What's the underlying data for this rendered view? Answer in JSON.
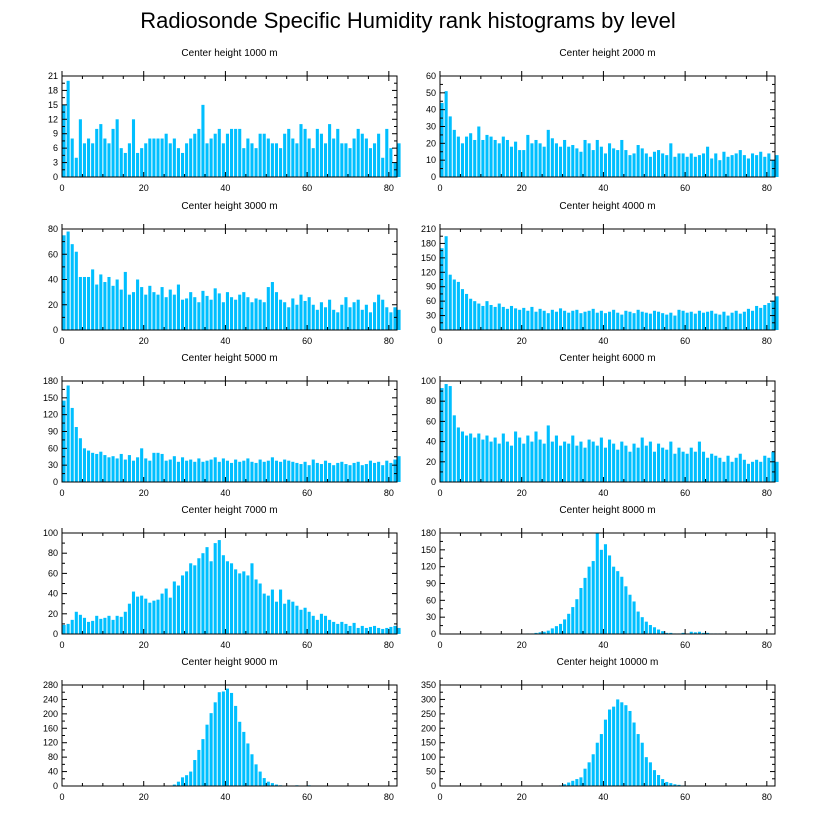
{
  "title": "Radiosonde Specific Humidity rank histograms by level",
  "colors": {
    "bar": "#00bfff",
    "axis": "#000000"
  },
  "chart_data": [
    {
      "type": "bar",
      "title": "Center height 1000 m",
      "xlim": [
        0,
        82
      ],
      "ylim": [
        0,
        21
      ],
      "xticks": [
        0,
        20,
        40,
        60,
        80
      ],
      "yticks": [
        0,
        3,
        6,
        9,
        12,
        15,
        18,
        21
      ],
      "values": [
        15,
        20,
        8,
        4,
        12,
        7,
        8,
        7,
        10,
        11,
        8,
        7,
        10,
        12,
        6,
        5,
        7,
        12,
        5,
        6,
        7,
        8,
        8,
        8,
        8,
        9,
        7,
        8,
        6,
        5,
        7,
        8,
        9,
        10,
        15,
        7,
        8,
        9,
        10,
        7,
        9,
        10,
        10,
        10,
        6,
        8,
        7,
        6,
        9,
        9,
        8,
        7,
        7,
        6,
        9,
        10,
        8,
        7,
        11,
        10,
        8,
        6,
        10,
        9,
        7,
        11,
        8,
        10,
        7,
        7,
        6,
        8,
        10,
        9,
        8,
        6,
        7,
        9,
        4,
        10,
        6,
        3,
        7
      ]
    },
    {
      "type": "bar",
      "title": "Center height 2000 m",
      "xlim": [
        0,
        82
      ],
      "ylim": [
        0,
        60
      ],
      "xticks": [
        0,
        20,
        40,
        60,
        80
      ],
      "yticks": [
        0,
        10,
        20,
        30,
        40,
        50,
        60
      ],
      "values": [
        44,
        51,
        36,
        28,
        24,
        20,
        24,
        26,
        22,
        30,
        22,
        25,
        24,
        22,
        20,
        24,
        22,
        18,
        21,
        16,
        16,
        25,
        20,
        22,
        20,
        18,
        28,
        23,
        20,
        18,
        22,
        18,
        19,
        17,
        15,
        22,
        20,
        16,
        22,
        18,
        14,
        20,
        17,
        16,
        22,
        16,
        13,
        14,
        19,
        17,
        14,
        12,
        15,
        16,
        14,
        13,
        20,
        12,
        14,
        14,
        12,
        14,
        12,
        13,
        14,
        18,
        11,
        14,
        10,
        15,
        12,
        13,
        14,
        16,
        13,
        11,
        14,
        13,
        15,
        12,
        14,
        10,
        13
      ]
    },
    {
      "type": "bar",
      "title": "Center height 3000 m",
      "xlim": [
        0,
        82
      ],
      "ylim": [
        0,
        80
      ],
      "xticks": [
        0,
        20,
        40,
        60,
        80
      ],
      "yticks": [
        0,
        20,
        40,
        60,
        80
      ],
      "values": [
        75,
        78,
        68,
        62,
        42,
        42,
        42,
        48,
        36,
        44,
        38,
        42,
        35,
        40,
        32,
        46,
        28,
        30,
        40,
        34,
        28,
        35,
        30,
        28,
        34,
        26,
        32,
        28,
        36,
        24,
        25,
        30,
        26,
        22,
        31,
        27,
        24,
        33,
        29,
        22,
        30,
        26,
        24,
        28,
        30,
        26,
        22,
        25,
        24,
        22,
        34,
        38,
        30,
        24,
        22,
        18,
        25,
        20,
        28,
        23,
        26,
        20,
        16,
        22,
        18,
        24,
        16,
        14,
        20,
        26,
        18,
        22,
        24,
        16,
        20,
        14,
        22,
        28,
        24,
        18,
        14,
        18,
        16
      ]
    },
    {
      "type": "bar",
      "title": "Center height 4000 m",
      "xlim": [
        0,
        82
      ],
      "ylim": [
        0,
        210
      ],
      "xticks": [
        0,
        20,
        40,
        60,
        80
      ],
      "yticks": [
        0,
        30,
        60,
        90,
        120,
        150,
        180,
        210
      ],
      "values": [
        170,
        195,
        115,
        105,
        100,
        85,
        75,
        65,
        60,
        55,
        50,
        60,
        52,
        48,
        55,
        48,
        44,
        50,
        45,
        42,
        46,
        40,
        48,
        38,
        44,
        40,
        35,
        42,
        38,
        45,
        40,
        36,
        40,
        42,
        35,
        38,
        40,
        44,
        36,
        40,
        35,
        38,
        42,
        36,
        32,
        40,
        38,
        35,
        42,
        38,
        36,
        34,
        40,
        38,
        35,
        32,
        36,
        30,
        42,
        40,
        36,
        38,
        34,
        40,
        36,
        38,
        40,
        34,
        32,
        38,
        30,
        36,
        40,
        34,
        38,
        44,
        40,
        50,
        46,
        52,
        56,
        60,
        70
      ]
    },
    {
      "type": "bar",
      "title": "Center height 5000 m",
      "xlim": [
        0,
        82
      ],
      "ylim": [
        0,
        180
      ],
      "xticks": [
        0,
        20,
        40,
        60,
        80
      ],
      "yticks": [
        0,
        30,
        60,
        90,
        120,
        150,
        180
      ],
      "values": [
        145,
        172,
        132,
        98,
        78,
        60,
        56,
        52,
        50,
        54,
        48,
        44,
        46,
        42,
        50,
        40,
        48,
        38,
        44,
        60,
        42,
        38,
        52,
        52,
        50,
        38,
        40,
        46,
        36,
        44,
        38,
        40,
        36,
        42,
        36,
        38,
        40,
        44,
        36,
        42,
        38,
        34,
        40,
        36,
        38,
        42,
        36,
        34,
        40,
        36,
        38,
        44,
        38,
        36,
        40,
        38,
        36,
        34,
        32,
        36,
        30,
        40,
        34,
        32,
        38,
        34,
        30,
        34,
        36,
        32,
        30,
        34,
        36,
        30,
        32,
        38,
        34,
        36,
        30,
        38,
        34,
        40,
        46
      ]
    },
    {
      "type": "bar",
      "title": "Center height 6000 m",
      "xlim": [
        0,
        82
      ],
      "ylim": [
        0,
        100
      ],
      "xticks": [
        0,
        20,
        40,
        60,
        80
      ],
      "yticks": [
        0,
        20,
        40,
        60,
        80,
        100
      ],
      "values": [
        93,
        97,
        95,
        66,
        54,
        50,
        46,
        48,
        44,
        48,
        42,
        46,
        40,
        44,
        38,
        48,
        40,
        36,
        50,
        44,
        38,
        46,
        40,
        50,
        42,
        38,
        56,
        40,
        46,
        36,
        40,
        38,
        46,
        36,
        40,
        34,
        42,
        40,
        36,
        44,
        34,
        42,
        38,
        32,
        40,
        36,
        30,
        38,
        34,
        44,
        36,
        40,
        30,
        38,
        34,
        32,
        40,
        28,
        34,
        30,
        28,
        34,
        30,
        40,
        30,
        24,
        28,
        26,
        24,
        20,
        26,
        20,
        24,
        28,
        22,
        18,
        20,
        22,
        20,
        26,
        24,
        30,
        20
      ]
    },
    {
      "type": "bar",
      "title": "Center height 7000 m",
      "xlim": [
        0,
        82
      ],
      "ylim": [
        0,
        100
      ],
      "xticks": [
        0,
        20,
        40,
        60,
        80
      ],
      "yticks": [
        0,
        20,
        40,
        60,
        80,
        100
      ],
      "values": [
        9,
        10,
        14,
        22,
        19,
        16,
        12,
        13,
        18,
        15,
        16,
        18,
        14,
        18,
        17,
        22,
        30,
        42,
        37,
        38,
        35,
        31,
        33,
        34,
        40,
        45,
        36,
        52,
        48,
        58,
        62,
        70,
        68,
        75,
        80,
        86,
        72,
        90,
        93,
        78,
        72,
        70,
        64,
        60,
        62,
        58,
        70,
        54,
        50,
        40,
        38,
        44,
        32,
        44,
        30,
        34,
        32,
        28,
        24,
        26,
        22,
        18,
        14,
        20,
        18,
        14,
        12,
        10,
        12,
        10,
        8,
        11,
        6,
        8,
        6,
        7,
        8,
        6,
        5,
        6,
        7,
        8,
        6
      ]
    },
    {
      "type": "bar",
      "title": "Center height 8000 m",
      "xlim": [
        0,
        82
      ],
      "ylim": [
        0,
        180
      ],
      "xticks": [
        0,
        20,
        40,
        60,
        80
      ],
      "yticks": [
        0,
        30,
        60,
        90,
        120,
        150,
        180
      ],
      "values": [
        0,
        0,
        0,
        0,
        0,
        0,
        0,
        0,
        0,
        0,
        0,
        0,
        0,
        0,
        0,
        0,
        0,
        0,
        0,
        0,
        0,
        1,
        1,
        2,
        3,
        4,
        6,
        10,
        14,
        18,
        26,
        36,
        48,
        62,
        82,
        100,
        120,
        130,
        180,
        150,
        160,
        140,
        120,
        112,
        102,
        85,
        70,
        58,
        40,
        30,
        22,
        16,
        12,
        8,
        5,
        2,
        2,
        1,
        1,
        2,
        1,
        4,
        3,
        4,
        2,
        2,
        1,
        1,
        1,
        0,
        0,
        0,
        0,
        0,
        0,
        0,
        0,
        0,
        0,
        0,
        0,
        0,
        0
      ]
    },
    {
      "type": "bar",
      "title": "Center height 9000 m",
      "xlim": [
        0,
        82
      ],
      "ylim": [
        0,
        280
      ],
      "xticks": [
        0,
        20,
        40,
        60,
        80
      ],
      "yticks": [
        0,
        40,
        80,
        120,
        160,
        200,
        240,
        280
      ],
      "values": [
        0,
        0,
        0,
        0,
        0,
        0,
        0,
        0,
        0,
        0,
        0,
        0,
        0,
        0,
        0,
        0,
        0,
        0,
        0,
        0,
        0,
        0,
        0,
        0,
        0,
        0,
        0,
        4,
        12,
        24,
        30,
        40,
        72,
        100,
        130,
        170,
        202,
        232,
        260,
        262,
        270,
        258,
        222,
        178,
        150,
        118,
        88,
        60,
        40,
        22,
        12,
        8,
        4,
        2,
        1,
        1,
        1,
        2,
        1,
        1,
        2,
        1,
        1,
        1,
        0,
        0,
        0,
        0,
        0,
        0,
        1,
        0,
        0,
        0,
        0,
        0,
        0,
        0,
        0,
        0,
        0,
        0,
        0
      ]
    },
    {
      "type": "bar",
      "title": "Center height 10000 m",
      "xlim": [
        0,
        82
      ],
      "ylim": [
        0,
        350
      ],
      "xticks": [
        0,
        20,
        40,
        60,
        80
      ],
      "yticks": [
        0,
        50,
        100,
        150,
        200,
        250,
        300,
        350
      ],
      "values": [
        0,
        0,
        0,
        0,
        0,
        0,
        0,
        0,
        0,
        0,
        0,
        0,
        0,
        0,
        0,
        0,
        0,
        0,
        0,
        0,
        0,
        0,
        0,
        0,
        0,
        0,
        0,
        0,
        0,
        2,
        6,
        12,
        18,
        24,
        30,
        60,
        82,
        110,
        150,
        180,
        230,
        265,
        275,
        300,
        290,
        280,
        260,
        220,
        180,
        150,
        100,
        82,
        55,
        38,
        24,
        14,
        10,
        6,
        4,
        2,
        1,
        1,
        1,
        0,
        0,
        0,
        0,
        0,
        0,
        0,
        0,
        0,
        0,
        0,
        0,
        0,
        0,
        0,
        0,
        0,
        0,
        0,
        0
      ]
    }
  ]
}
